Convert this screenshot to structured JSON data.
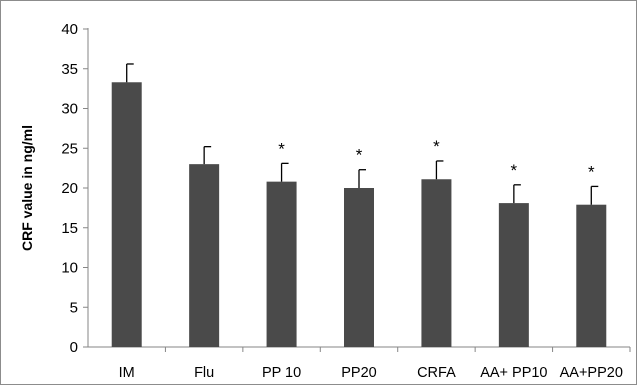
{
  "chart_data": {
    "type": "bar",
    "title": "",
    "xlabel": "",
    "ylabel": "CRF value in ng/ml",
    "ylim": [
      0,
      40
    ],
    "yticks": [
      0,
      5,
      10,
      15,
      20,
      25,
      30,
      35,
      40
    ],
    "grid": false,
    "legend": "none",
    "categories": [
      "IM",
      "Flu",
      "PP 10",
      "PP20",
      "CRFA",
      "AA+ PP10",
      "AA+PP20"
    ],
    "values": [
      33.3,
      23.0,
      20.8,
      20.0,
      21.1,
      18.1,
      17.9
    ],
    "error": [
      2.3,
      2.2,
      2.3,
      2.3,
      2.3,
      2.3,
      2.3
    ],
    "annotations": [
      "",
      "",
      "*",
      "*",
      "*",
      "*",
      "*"
    ],
    "bar_color": "#4a4a4a",
    "error_bar_color": "#000000"
  }
}
